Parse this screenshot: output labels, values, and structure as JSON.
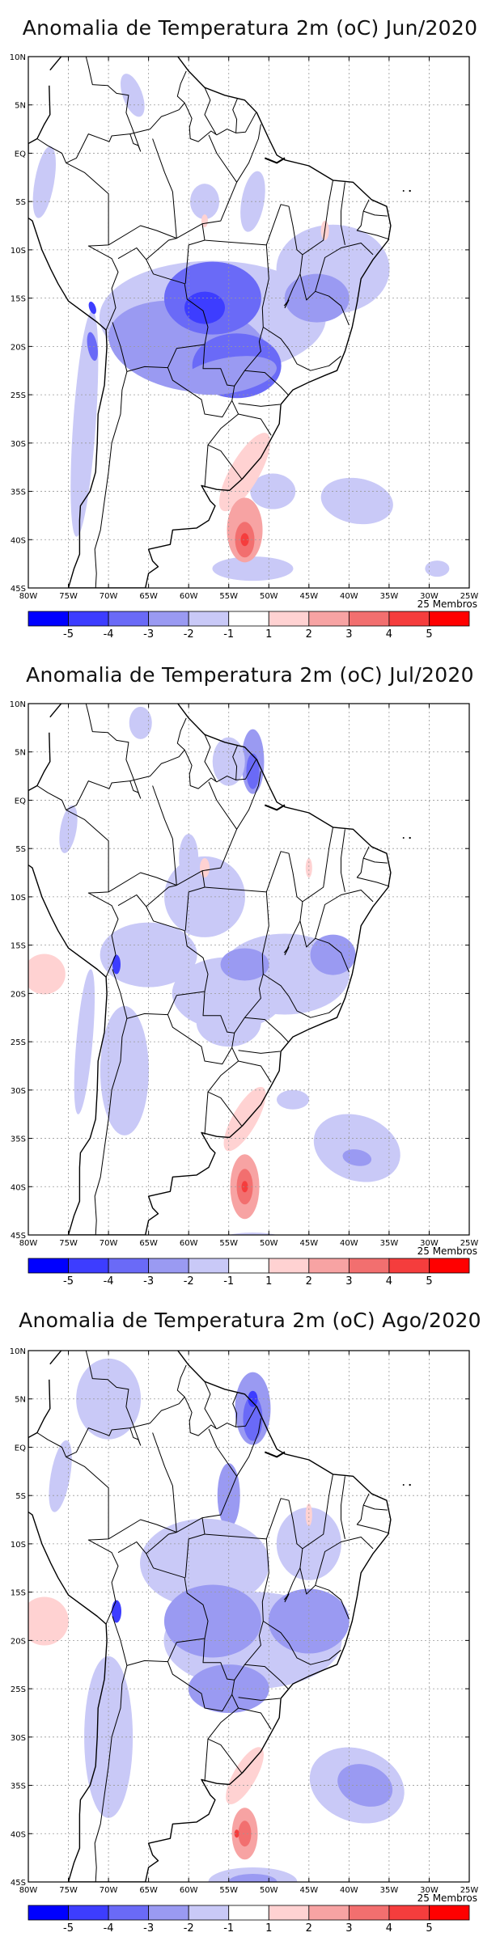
{
  "panels": [
    {
      "title": "Anomalia de Temperatura 2m (oC) Jun/2020",
      "month": "Jun"
    },
    {
      "title": "Anomalia de Temperatura 2m (oC) Jul/2020",
      "month": "Jul"
    },
    {
      "title": "Anomalia de Temperatura 2m (oC) Ago/2020",
      "month": "Ago"
    }
  ],
  "map": {
    "lat_labels": [
      "10N",
      "5N",
      "EQ",
      "5S",
      "10S",
      "15S",
      "20S",
      "25S",
      "30S",
      "35S",
      "40S",
      "45S"
    ],
    "lon_labels": [
      "80W",
      "75W",
      "70W",
      "65W",
      "60W",
      "55W",
      "50W",
      "45W",
      "40W",
      "35W",
      "30W",
      "25W"
    ],
    "lon_range": [
      -80,
      -25
    ],
    "lat_range": [
      -45,
      10
    ]
  },
  "members_label": "25 Membros",
  "colorbar": {
    "colors": [
      "#0000ff",
      "#3d3dff",
      "#6a6af7",
      "#9a9af2",
      "#c9c9f7",
      "#ffffff",
      "#ffd2d2",
      "#f7a3a3",
      "#f26f6f",
      "#f53d3d",
      "#ff0000"
    ],
    "labels": [
      "-5",
      "-4",
      "-3",
      "-2",
      "-1",
      "1",
      "2",
      "3",
      "4",
      "5"
    ]
  }
}
